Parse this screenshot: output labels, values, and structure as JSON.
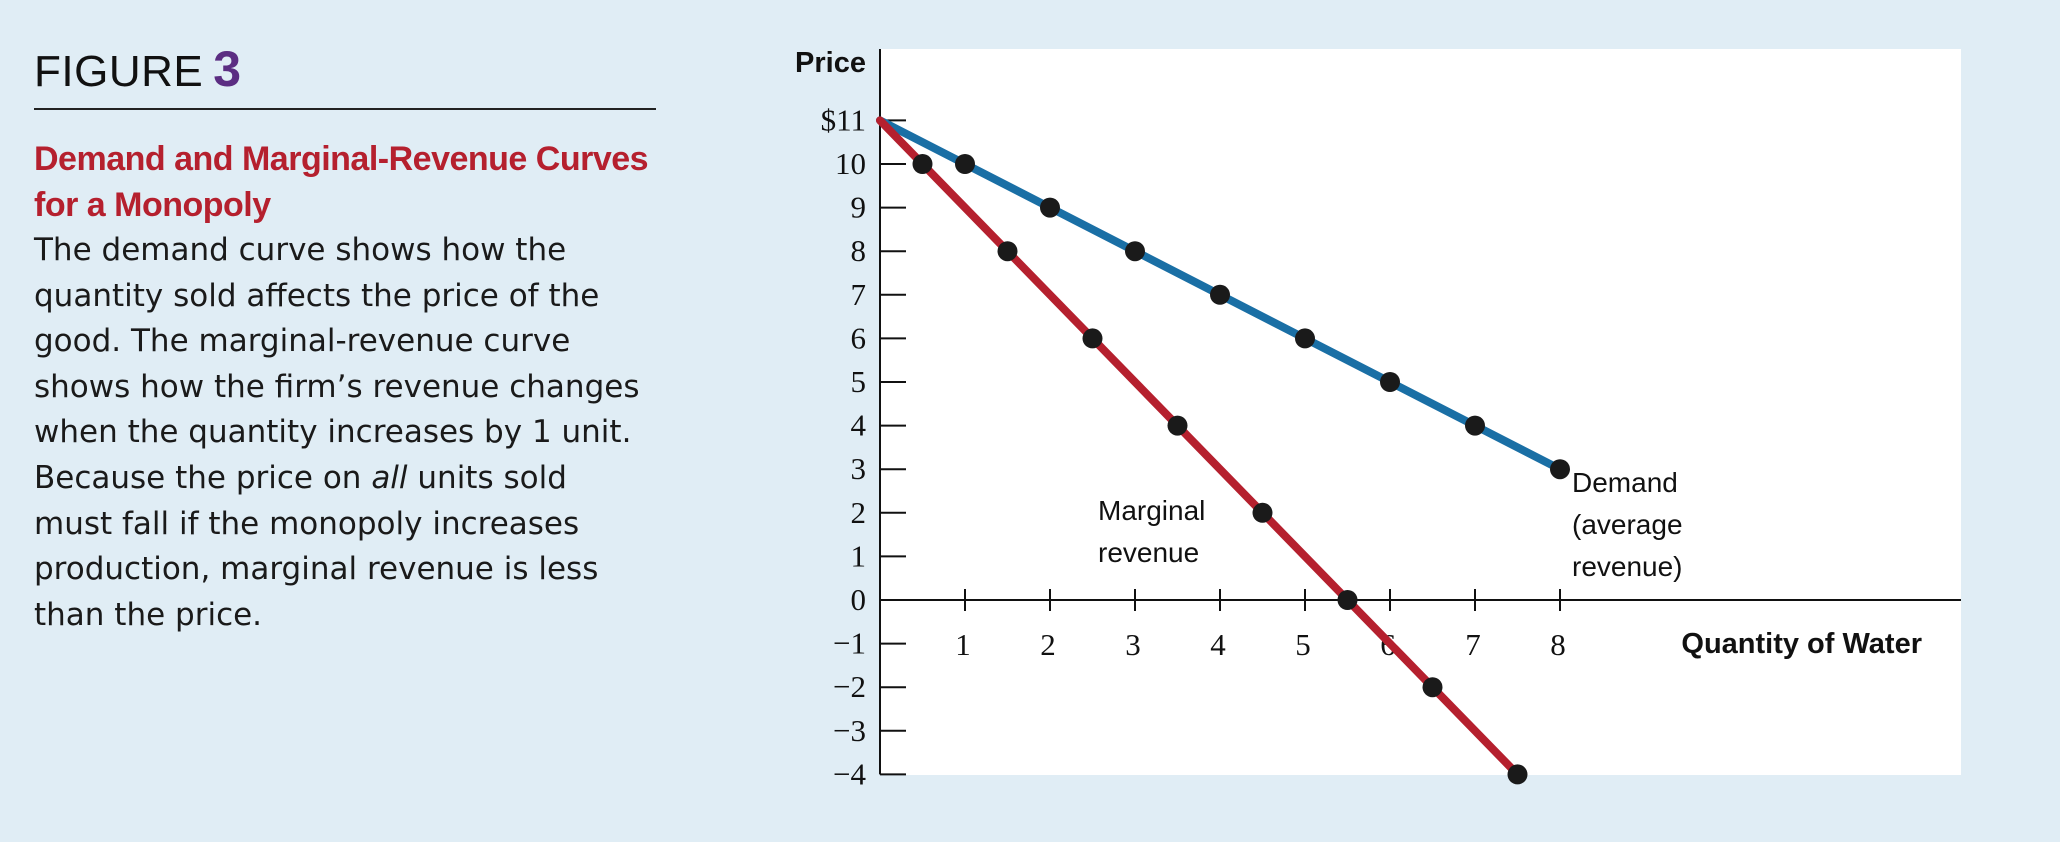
{
  "caption": {
    "figure_label": "FIGURE",
    "figure_number": "3",
    "title_lines": [
      "Demand and Marginal-Revenue Curves",
      "for a Monopoly"
    ],
    "body": {
      "l1": "The demand curve shows how the",
      "l2": "quantity sold affects the price of the",
      "l3": "good. The marginal-revenue curve",
      "l4": "shows how the firm’s revenue changes",
      "l5": "when the quantity increases by 1 unit.",
      "l6_a": "Because the price on ",
      "l6_b": "all",
      "l6_c": " units sold",
      "l7": "must fall if the monopoly increases",
      "l8": "production, marginal revenue is less",
      "l9": "than the price."
    }
  },
  "chart_data": {
    "type": "line",
    "ylabel": "Price",
    "xlabel": "Quantity of Water",
    "xlim": [
      0,
      8
    ],
    "ylim": [
      -4,
      11
    ],
    "x_ticks": [
      "1",
      "2",
      "3",
      "4",
      "5",
      "6",
      "7",
      "8"
    ],
    "y_ticks": [
      {
        "value": 11,
        "label": "$11"
      },
      {
        "value": 10,
        "label": "10"
      },
      {
        "value": 9,
        "label": "9"
      },
      {
        "value": 8,
        "label": "8"
      },
      {
        "value": 7,
        "label": "7"
      },
      {
        "value": 6,
        "label": "6"
      },
      {
        "value": 5,
        "label": "5"
      },
      {
        "value": 4,
        "label": "4"
      },
      {
        "value": 3,
        "label": "3"
      },
      {
        "value": 2,
        "label": "2"
      },
      {
        "value": 1,
        "label": "1"
      },
      {
        "value": 0,
        "label": "0"
      },
      {
        "value": -1,
        "label": "−1"
      },
      {
        "value": -2,
        "label": "−2"
      },
      {
        "value": -3,
        "label": "−3"
      },
      {
        "value": -4,
        "label": "−4"
      }
    ],
    "series": [
      {
        "id": "demand",
        "color": "#1a6fa5",
        "line": [
          [
            0,
            11
          ],
          [
            8,
            3
          ]
        ],
        "points": [
          [
            1,
            10
          ],
          [
            2,
            9
          ],
          [
            3,
            8
          ],
          [
            4,
            7
          ],
          [
            5,
            6
          ],
          [
            6,
            5
          ],
          [
            7,
            4
          ],
          [
            8,
            3
          ]
        ],
        "label_lines": [
          "Demand",
          "(average",
          "revenue)"
        ]
      },
      {
        "id": "marginal-revenue",
        "color": "#b5202e",
        "line": [
          [
            0,
            11
          ],
          [
            7.5,
            -4
          ]
        ],
        "points": [
          [
            0.5,
            10
          ],
          [
            1.5,
            8
          ],
          [
            2.5,
            6
          ],
          [
            3.5,
            4
          ],
          [
            4.5,
            2
          ],
          [
            5.5,
            0
          ],
          [
            6.5,
            -2
          ],
          [
            7.5,
            -4
          ]
        ],
        "label_lines": [
          "Marginal",
          "revenue"
        ]
      }
    ],
    "grid": false,
    "plot_background": "#ffffff"
  }
}
